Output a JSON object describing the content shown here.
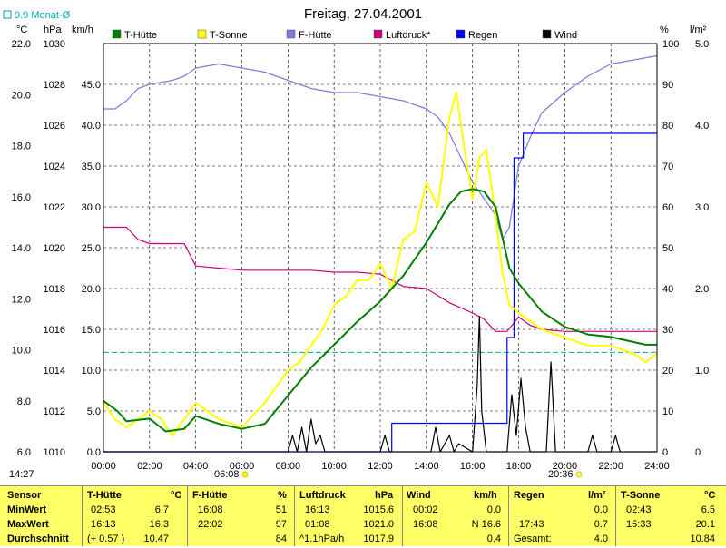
{
  "title": "Freitag, 27.04.2001",
  "avg_label": "9.9 Monat-Ø",
  "time_now": "14:27",
  "sunrise": "06:08",
  "sunset": "20:36",
  "units": {
    "temp": "°C",
    "press": "hPa",
    "wind": "km/h",
    "percent": "%",
    "rain": "l/m²"
  },
  "axes": {
    "temp_ticks": [
      "22.0",
      "20.0",
      "18.0",
      "16.0",
      "14.0",
      "12.0",
      "10.0",
      "8.0",
      "6.0"
    ],
    "press_ticks": [
      "1030",
      "1028",
      "1026",
      "1024",
      "1022",
      "1020",
      "1018",
      "1016",
      "1014",
      "1012",
      "1010"
    ],
    "wind_ticks": [
      "45.0",
      "40.0",
      "35.0",
      "30.0",
      "25.0",
      "20.0",
      "15.0",
      "10.0",
      "5.0",
      "0.0"
    ],
    "pct_ticks": [
      "100",
      "90",
      "80",
      "70",
      "60",
      "50",
      "40",
      "30",
      "20",
      "10",
      "0"
    ],
    "rain_ticks": [
      "5.0",
      "4.0",
      "3.0",
      "2.0",
      "1.0",
      "0"
    ],
    "x_ticks": [
      "00:00",
      "02:00",
      "04:00",
      "06:00",
      "08:00",
      "10:00",
      "12:00",
      "14:00",
      "16:00",
      "18:00",
      "20:00",
      "22:00",
      "24:00"
    ]
  },
  "chart_data": {
    "type": "line",
    "title": "Freitag, 27.04.2001",
    "x_unit": "hour",
    "xlim": [
      0,
      24
    ],
    "y_axes": {
      "temperature_C": [
        6,
        22
      ],
      "pressure_hPa": [
        1010,
        1030
      ],
      "wind_kmh": [
        0,
        50
      ],
      "humidity_pct": [
        0,
        100
      ],
      "rain_lm2": [
        0,
        5
      ]
    },
    "monthly_average_C": 9.9,
    "legend": [
      {
        "name": "T-Hütte",
        "color": "#008000"
      },
      {
        "name": "T-Sonne",
        "color": "#ffff00"
      },
      {
        "name": "F-Hütte",
        "color": "#7b7bdb"
      },
      {
        "name": "Luftdruck*",
        "color": "#d0007a"
      },
      {
        "name": "Regen",
        "color": "#0000ff"
      },
      {
        "name": "Wind",
        "color": "#000000"
      }
    ],
    "series": [
      {
        "name": "T-Hütte",
        "axis": "temperature_C",
        "color": "#008000",
        "x": [
          0,
          0.6,
          1,
          2,
          2.7,
          3.5,
          4,
          5,
          6,
          7,
          8,
          9,
          10,
          11,
          12,
          13,
          14,
          15,
          15.5,
          16,
          16.5,
          17,
          17.3,
          17.6,
          18,
          19,
          20,
          21,
          22,
          23,
          23.5,
          24
        ],
        "y": [
          8.0,
          7.6,
          7.2,
          7.3,
          6.8,
          6.9,
          7.4,
          7.1,
          6.9,
          7.1,
          8.2,
          9.3,
          10.2,
          11.1,
          11.9,
          12.9,
          14.2,
          15.7,
          16.2,
          16.3,
          16.2,
          15.6,
          14.4,
          13.2,
          12.6,
          11.5,
          10.9,
          10.6,
          10.5,
          10.3,
          10.2,
          10.2
        ]
      },
      {
        "name": "T-Sonne",
        "axis": "wind_kmh",
        "color": "#ffff00",
        "x": [
          0,
          0.5,
          1,
          1.5,
          2,
          2.5,
          3,
          3.5,
          4,
          4.5,
          5,
          6,
          7,
          8,
          8.5,
          9,
          9.5,
          10,
          10.5,
          11,
          11.5,
          12,
          12.5,
          13,
          13.5,
          14,
          14.5,
          15,
          15.3,
          15.6,
          16,
          16.3,
          16.6,
          17,
          17.3,
          17.6,
          18,
          18.5,
          19,
          20,
          21,
          22,
          23,
          23.5,
          24
        ],
        "y": [
          6,
          4,
          3,
          4,
          5,
          4,
          2,
          4,
          6,
          5,
          4,
          3,
          6,
          10,
          11,
          13,
          15,
          18,
          19,
          21,
          21,
          23,
          20,
          26,
          27,
          33,
          30,
          41,
          44,
          38,
          31,
          36,
          37,
          29,
          22,
          18,
          17,
          16,
          15,
          14,
          13,
          13,
          12,
          11,
          12
        ]
      },
      {
        "name": "F-Hütte",
        "axis": "humidity_pct",
        "color": "#7b7bdb",
        "x": [
          0,
          0.5,
          1,
          1.5,
          2,
          3,
          3.5,
          4,
          5,
          6,
          7,
          8,
          9,
          10,
          11,
          12,
          13,
          14,
          14.5,
          15,
          15.5,
          16,
          16.5,
          17,
          17.3,
          17.6,
          18,
          18.5,
          19,
          20,
          21,
          22,
          23,
          24
        ],
        "y": [
          84,
          84,
          86,
          89,
          90,
          91,
          92,
          94,
          95,
          94,
          93,
          91,
          89,
          88,
          88,
          87,
          86,
          84,
          82,
          78,
          72,
          66,
          62,
          58,
          52,
          55,
          70,
          77,
          83,
          88,
          92,
          95,
          96,
          97
        ]
      },
      {
        "name": "Luftdruck*",
        "axis": "pressure_hPa",
        "color": "#d0007a",
        "x": [
          0,
          1,
          1.5,
          2,
          3,
          3.5,
          4,
          5,
          6,
          7,
          8,
          9,
          10,
          11,
          12,
          13,
          14,
          15,
          16,
          16.5,
          17,
          17.5,
          18,
          18.5,
          19,
          20,
          21,
          22,
          23,
          24
        ],
        "y": [
          1021,
          1021,
          1020.4,
          1020.2,
          1020.2,
          1020.2,
          1019.1,
          1019,
          1018.9,
          1018.9,
          1018.9,
          1018.9,
          1018.8,
          1018.8,
          1018.7,
          1018.1,
          1018,
          1017.3,
          1016.8,
          1016.5,
          1015.9,
          1015.9,
          1016.6,
          1016.2,
          1016.0,
          1015.9,
          1015.9,
          1015.9,
          1015.9,
          1015.9
        ]
      },
      {
        "name": "Regen",
        "axis": "rain_lm2",
        "color": "#0000ff",
        "x": [
          0,
          12.5,
          12.5,
          17.5,
          17.5,
          17.8,
          17.8,
          18.2,
          18.2,
          24
        ],
        "y": [
          0,
          0,
          0.35,
          0.35,
          1.4,
          1.4,
          3.6,
          3.6,
          3.9,
          3.9
        ]
      },
      {
        "name": "Wind",
        "axis": "wind_kmh",
        "color": "#000000",
        "x": [
          0,
          8,
          8.2,
          8.4,
          8.6,
          8.8,
          9,
          9.2,
          9.4,
          9.6,
          12,
          12.2,
          12.4,
          14.2,
          14.4,
          14.6,
          15,
          15.2,
          15.4,
          16,
          16.2,
          16.3,
          16.4,
          16.6,
          17.5,
          17.7,
          17.9,
          18.1,
          18.3,
          18.5,
          19.2,
          19.4,
          19.6,
          20,
          21,
          21.2,
          21.4,
          22,
          22.2,
          22.4,
          24
        ],
        "y": [
          0,
          0,
          2,
          0,
          3,
          0,
          4,
          1,
          2,
          0,
          0,
          2,
          0,
          0,
          3,
          0,
          2,
          0,
          1,
          0,
          8,
          16.6,
          5,
          0,
          0,
          7,
          2,
          9,
          3,
          0,
          0,
          11,
          0,
          0,
          0,
          2,
          0,
          0,
          2,
          0,
          0
        ]
      }
    ]
  },
  "stats": {
    "headers": {
      "sensor": "Sensor",
      "thutte": "T-Hütte",
      "thutte_u": "°C",
      "fhutte": "F-Hütte",
      "fhutte_u": "%",
      "luft": "Luftdruck",
      "luft_u": "hPa",
      "wind": "Wind",
      "wind_u": "km/h",
      "regen": "Regen",
      "regen_u": "l/m²",
      "tsonne": "T-Sonne",
      "tsonne_u": "°C"
    },
    "rows": [
      {
        "label": "MinWert",
        "thutte_t": "02:53",
        "thutte_v": "6.7",
        "fhutte_t": "16:08",
        "fhutte_v": "51",
        "luft_t": "16:13",
        "luft_v": "1015.6",
        "wind_t": "00:02",
        "wind_v": "0.0",
        "regen_t": "",
        "regen_v": "0.0",
        "tsonne_t": "02:43",
        "tsonne_v": "6.5"
      },
      {
        "label": "MaxWert",
        "thutte_t": "16:13",
        "thutte_v": "16.3",
        "fhutte_t": "22:02",
        "fhutte_v": "97",
        "luft_t": "01:08",
        "luft_v": "1021.0",
        "wind_t": "16:08",
        "wind_v": "N 16.6",
        "regen_t": "17:43",
        "regen_v": "0.7",
        "tsonne_t": "15:33",
        "tsonne_v": "20.1"
      },
      {
        "label": "Durchschnitt",
        "thutte_t": "(+ 0.57 )",
        "thutte_v": "10.47",
        "fhutte_t": "",
        "fhutte_v": "84",
        "luft_t": "^1.1hPa/h",
        "luft_v": "1017.9",
        "wind_t": "",
        "wind_v": "0.4",
        "regen_t": "Gesamt:",
        "regen_v": "4.0",
        "tsonne_t": "",
        "tsonne_v": "10.84"
      }
    ]
  }
}
